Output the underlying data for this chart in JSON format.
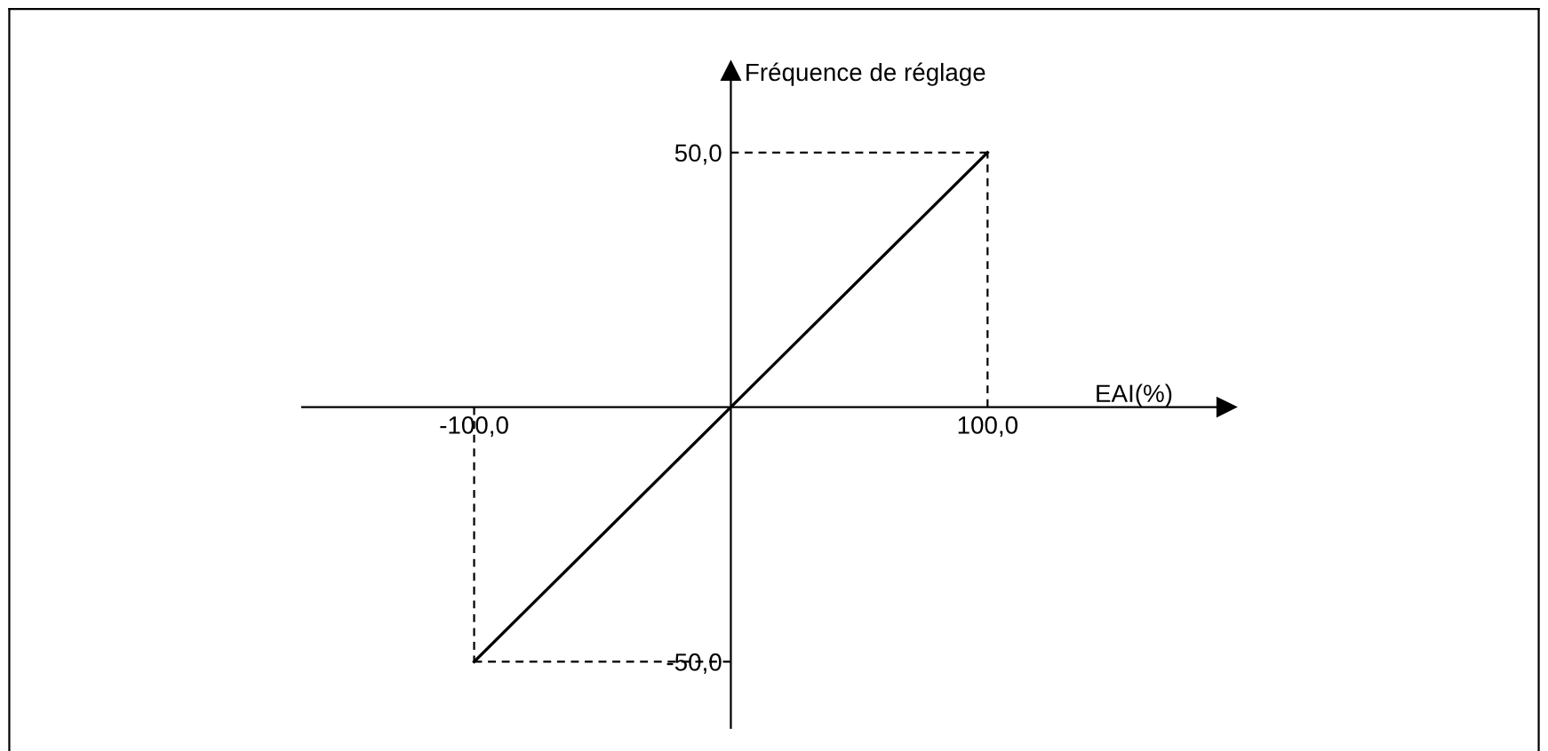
{
  "chart_data": {
    "type": "line",
    "xlabel": "EAI(%)",
    "ylabel": "Fréquence de réglage",
    "x": [
      -100,
      0,
      100
    ],
    "series": [
      {
        "color": "#000000",
        "values": [
          -50,
          0,
          50
        ]
      }
    ],
    "xlim": [
      -167,
      193
    ],
    "ylim": [
      -63,
      66
    ],
    "xticks": [
      {
        "value": -100,
        "label": "-100,0"
      },
      {
        "value": 100,
        "label": "100,0"
      }
    ],
    "yticks": [
      {
        "value": -50,
        "label": "-50,0"
      },
      {
        "value": 50,
        "label": "50,0"
      }
    ],
    "ref_lines": [
      {
        "axis": "x",
        "value": -100,
        "color": "#000000",
        "line_style": "dashed"
      },
      {
        "axis": "x",
        "value": 100,
        "color": "#000000",
        "line_style": "dashed"
      },
      {
        "axis": "y",
        "value": -50,
        "color": "#000000",
        "line_style": "dashed"
      },
      {
        "axis": "y",
        "value": 50,
        "color": "#000000",
        "line_style": "dashed"
      }
    ],
    "grid": false,
    "legend": false,
    "marker": "none",
    "line_style": "solid"
  }
}
